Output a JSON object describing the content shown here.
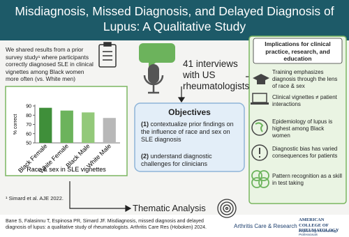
{
  "header": {
    "title": "Misdiagnosis, Missed Diagnosis, and Delayed Diagnosis of Lupus: A Qualitative Study"
  },
  "intro": "We shared results from a prior survey study¹ where participants correctly diagnosed SLE in clinical vignettes among Black women more often (vs. White men)",
  "chart_data": {
    "type": "bar",
    "y_label": "% correct",
    "x_label": "Race & sex in SLE vignettes",
    "categories": [
      "Black Female",
      "White Female",
      "Black Male",
      "White Male"
    ],
    "values": [
      88,
      85,
      83,
      77
    ],
    "colors": [
      "#3f8f3a",
      "#6cb35c",
      "#93c97a",
      "#b8b8b8"
    ],
    "ylim": [
      50,
      90
    ],
    "yticks": [
      50,
      60,
      70,
      80,
      90
    ],
    "grid": false
  },
  "interviews": "41 interviews with US rheumatologists",
  "objectives": {
    "title": "Objectives",
    "items": [
      {
        "number": "(1)",
        "text": "contextualize prior findings on the influence of race and sex on SLE diagnosis"
      },
      {
        "number": "(2)",
        "text": "understand diagnostic challenges for clinicians"
      }
    ]
  },
  "implications": {
    "title": "Implications for clinical practice, research, and education",
    "items": [
      "Training emphasizes diagnosis through the lens of race & sex",
      "Clinical vignettes ≠ patient interactions",
      "Epidemiology of lupus is highest among Black women",
      "Diagnostic bias has varied consequences for patients",
      "Pattern recognition as a skill in test taking"
    ]
  },
  "method": "Thematic Analysis",
  "footnote": "¹ Simard et al. AJE 2022.",
  "citation": "Bane S, Falasinnu T, Espinosa PR, Simard JF. Misdiagnosis, missed diagnosis and delayed diagnosis of lupus: a qualitative study of rheumatologists. Arthritis Care Res (Hoboken) 2024.",
  "journal": "Arthritis Care & Research",
  "society": {
    "name": "American College of Rheumatology",
    "tagline": "Empowering Rheumatology Professionals"
  }
}
